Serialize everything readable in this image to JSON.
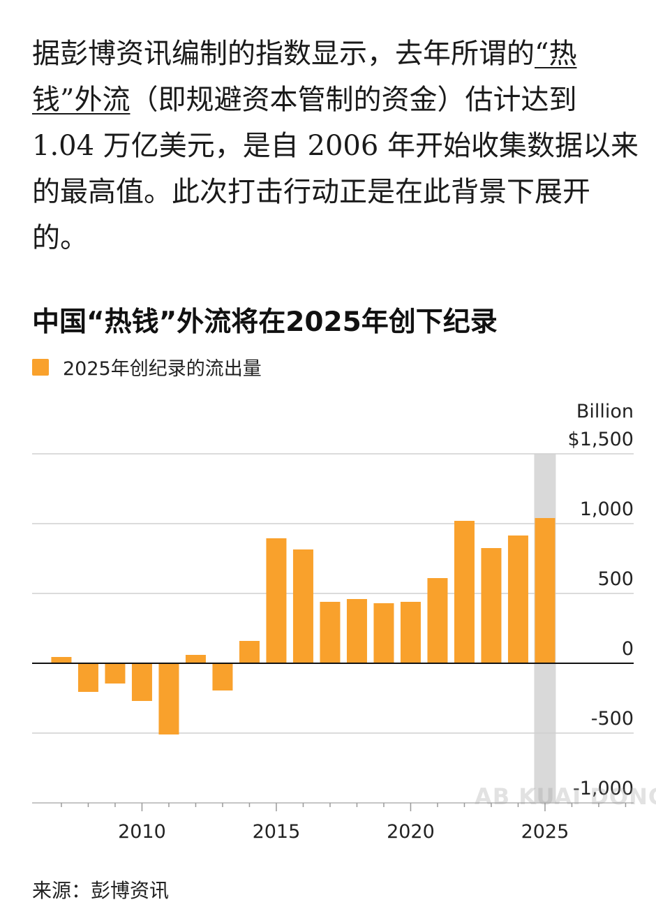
{
  "article": {
    "text_before": "据彭博资讯编制的指数显示，去年所谓的",
    "link_text": "“热钱”外流",
    "text_after": "（即规避资本管制的资金）估计达到 1.04 万亿美元，是自 2006 年开始收集数据以来的最高值。此次打击行动正是在此背景下展开的。"
  },
  "chart_data": {
    "type": "bar",
    "title": "中国“热钱”外流将在2025年创下纪录",
    "legend": [
      {
        "label": "2025年创纪录的流出量",
        "color": "#f9a12c"
      }
    ],
    "unit_label": "Billion",
    "x": [
      2007,
      2008,
      2009,
      2010,
      2011,
      2012,
      2013,
      2014,
      2015,
      2016,
      2017,
      2018,
      2019,
      2020,
      2021,
      2022,
      2023,
      2024,
      2025
    ],
    "values": [
      45,
      -205,
      -145,
      -270,
      -510,
      60,
      -195,
      160,
      895,
      815,
      440,
      460,
      430,
      440,
      610,
      1020,
      825,
      915,
      1040
    ],
    "highlight_x": 2025,
    "ylim": [
      -1000,
      1500
    ],
    "yticks": [
      {
        "value": 1500,
        "label": "$1,500"
      },
      {
        "value": 1000,
        "label": "1,000"
      },
      {
        "value": 500,
        "label": "500"
      },
      {
        "value": 0,
        "label": "0"
      },
      {
        "value": -500,
        "label": "-500"
      },
      {
        "value": -1000,
        "label": "-1,000"
      }
    ],
    "xticks": [
      2010,
      2015,
      2020,
      2025
    ],
    "grid": true,
    "bar_color": "#f9a12c",
    "highlight_color": "#d9d9d9"
  },
  "source": "来源：彭博资讯",
  "watermark": "AB KUAI DONG"
}
